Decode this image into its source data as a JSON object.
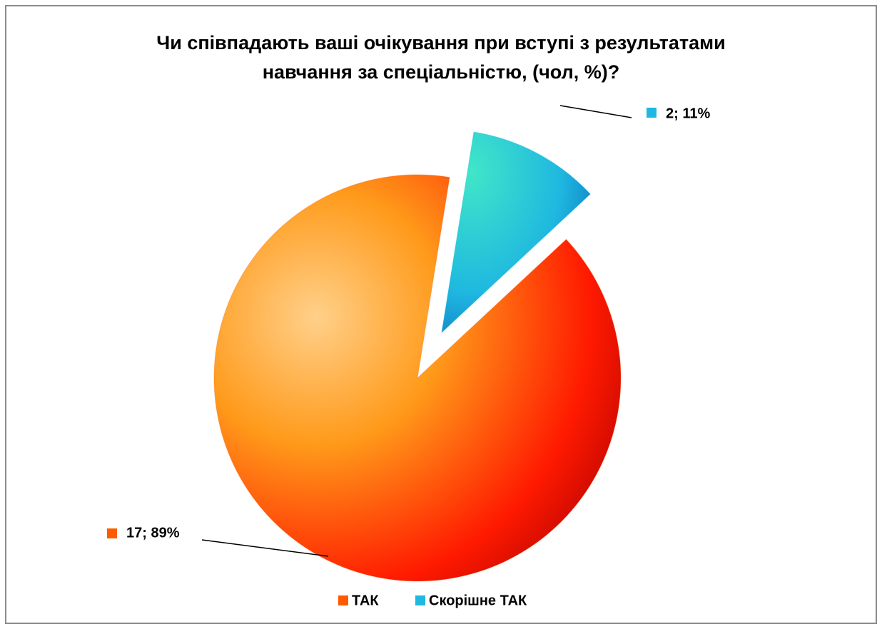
{
  "chart_data": {
    "type": "pie",
    "title": [
      "Чи співпадають ваші очікування при вступі з результатами",
      "навчання за спеціальністю, (чол, %)?"
    ],
    "categories": [
      "ТАК",
      "Скорішне ТАК"
    ],
    "values": [
      17,
      2
    ],
    "value_labels": [
      "17; 89%",
      "2; 11%"
    ],
    "colors": [
      "#ff5a00",
      "#1fb8e0"
    ],
    "legend": "bottom"
  }
}
